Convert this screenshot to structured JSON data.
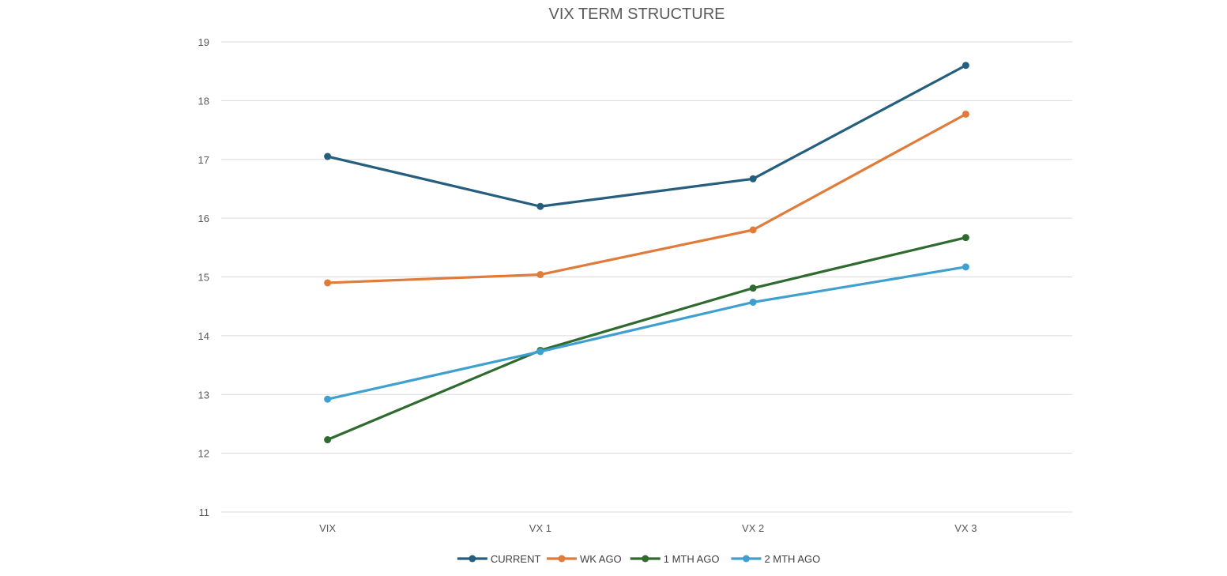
{
  "chart_data": {
    "type": "line",
    "title": "VIX TERM STRUCTURE",
    "xlabel": "",
    "ylabel": "",
    "categories": [
      "VIX",
      "VX 1",
      "VX 2",
      "VX 3"
    ],
    "ylim": [
      11,
      19
    ],
    "yticks": [
      11,
      12,
      13,
      14,
      15,
      16,
      17,
      18,
      19
    ],
    "grid": true,
    "legend_position": "bottom",
    "series": [
      {
        "name": "CURRENT",
        "color": "#255e7e",
        "values": [
          17.05,
          16.2,
          16.67,
          18.6
        ]
      },
      {
        "name": "WK AGO",
        "color": "#e07b39",
        "values": [
          14.9,
          15.04,
          15.8,
          17.77
        ]
      },
      {
        "name": "1 MTH AGO",
        "color": "#2f6a2f",
        "values": [
          12.23,
          13.75,
          14.81,
          15.67
        ]
      },
      {
        "name": "2 MTH AGO",
        "color": "#3fa0cf",
        "values": [
          12.92,
          13.73,
          14.57,
          15.17
        ]
      }
    ]
  }
}
